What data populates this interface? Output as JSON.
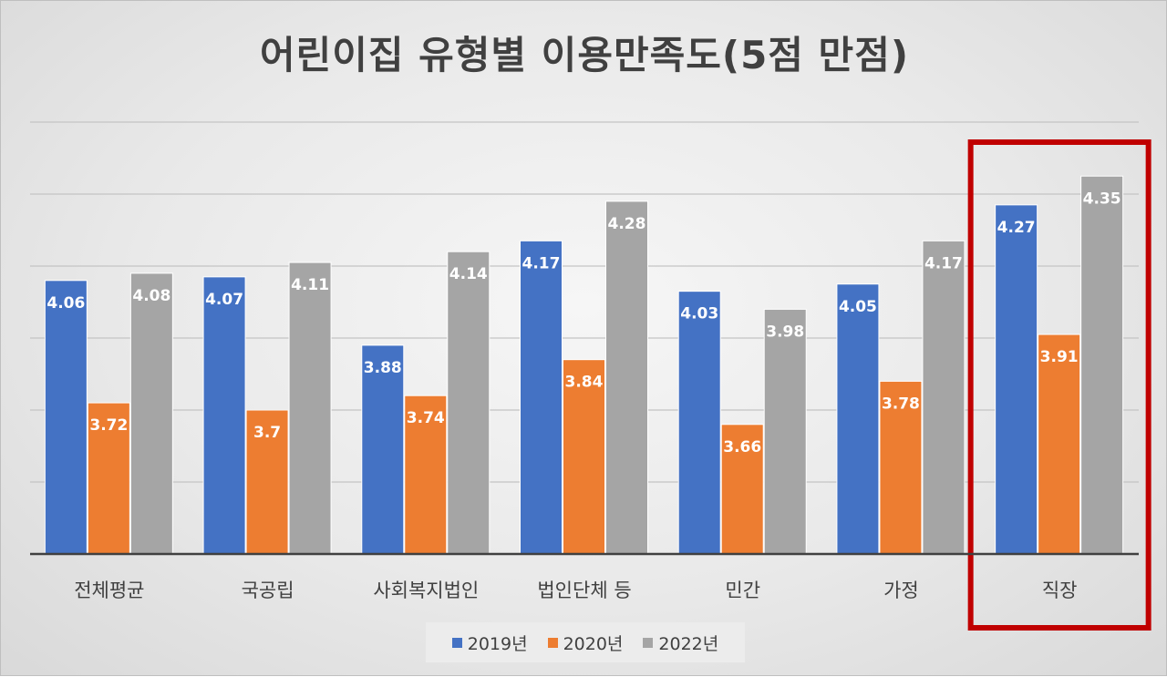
{
  "chart_data": {
    "type": "bar",
    "title": "어린이집 유형별 이용만족도(5점 만점)",
    "categories": [
      "전체평균",
      "국공립",
      "사회복지법인",
      "법인단체 등",
      "민간",
      "가정",
      "직장"
    ],
    "series": [
      {
        "name": "2019년",
        "color": "#4472c4",
        "values": [
          4.06,
          4.07,
          3.88,
          4.17,
          4.03,
          4.05,
          4.27
        ]
      },
      {
        "name": "2020년",
        "color": "#ed7d31",
        "values": [
          3.72,
          3.7,
          3.74,
          3.84,
          3.66,
          3.78,
          3.91
        ]
      },
      {
        "name": "2022년",
        "color": "#a5a5a5",
        "values": [
          4.08,
          4.11,
          4.14,
          4.28,
          3.98,
          4.17,
          4.35
        ]
      }
    ],
    "ylim": [
      3.3,
      4.5
    ],
    "gridlines": true,
    "legend_position": "bottom",
    "highlight_category": "직장",
    "highlight_color": "#c00000"
  }
}
